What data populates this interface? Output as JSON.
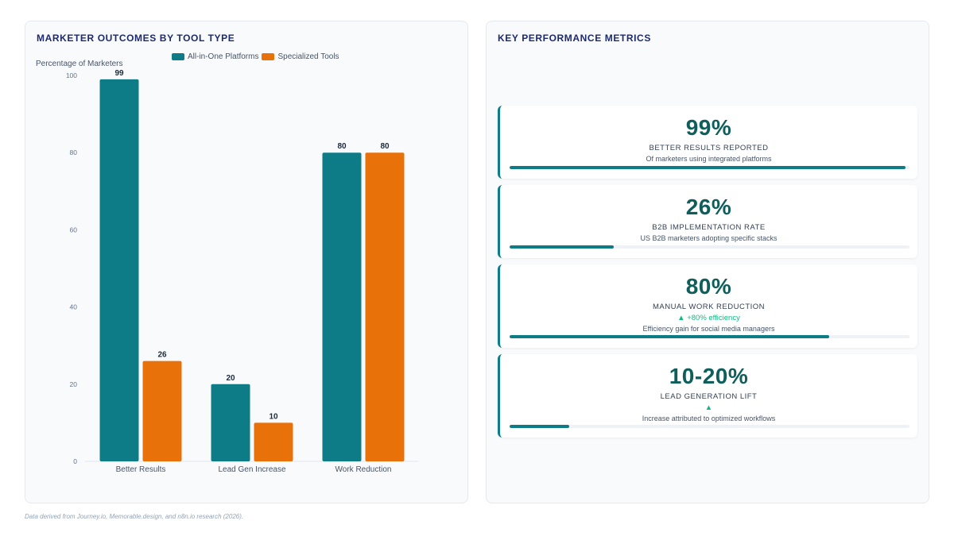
{
  "left_panel": {
    "title": "MARKETER OUTCOMES BY TOOL TYPE"
  },
  "right_panel": {
    "title": "KEY PERFORMANCE METRICS"
  },
  "colors": {
    "teal": "#0e7c86",
    "orange": "#e8710a",
    "title_navy": "#1e2a6e",
    "value_green": "#0f5e5c",
    "change_green": "#10b981"
  },
  "chart_data": {
    "type": "bar",
    "title": "MARKETER OUTCOMES BY TOOL TYPE",
    "ylabel": "Percentage of Marketers",
    "xlabel": "",
    "categories": [
      "Better Results",
      "Lead Gen Increase",
      "Work Reduction"
    ],
    "series": [
      {
        "name": "All-in-One Platforms",
        "values": [
          99,
          20,
          80
        ],
        "color": "#0e7c86"
      },
      {
        "name": "Specialized Tools",
        "values": [
          26,
          10,
          80
        ],
        "color": "#e8710a"
      }
    ],
    "ylim": [
      0,
      100
    ],
    "yticks": [
      0,
      20,
      40,
      60,
      80,
      100
    ],
    "legend": "top-center",
    "grid": false,
    "data_labels": true
  },
  "metrics": [
    {
      "value": "99%",
      "label": "BETTER RESULTS REPORTED",
      "change": "",
      "description": "Of marketers using integrated platforms",
      "progress": 99
    },
    {
      "value": "26%",
      "label": "B2B IMPLEMENTATION RATE",
      "change": "",
      "description": "US B2B marketers adopting specific stacks",
      "progress": 26
    },
    {
      "value": "80%",
      "label": "MANUAL WORK REDUCTION",
      "change": "▲ +80% efficiency",
      "description": "Efficiency gain for social media managers",
      "progress": 80
    },
    {
      "value": "10-20%",
      "label": "LEAD GENERATION LIFT",
      "change": "▲",
      "description": "Increase attributed to optimized workflows",
      "progress": 15
    }
  ],
  "footnote": "Data derived from Journey.io, Memorable.design, and n8n.io research (2026)."
}
